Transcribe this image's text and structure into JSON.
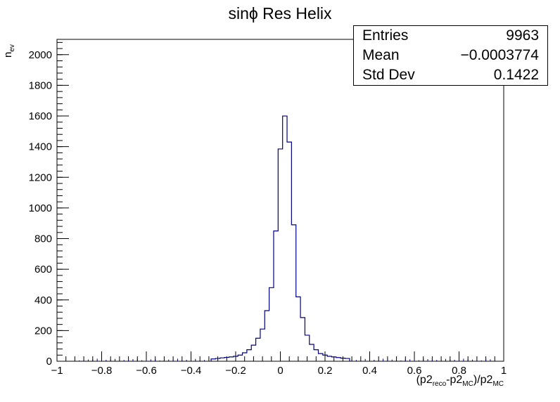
{
  "title": "sinϕ Res Helix",
  "stats": [
    {
      "label": "Entries",
      "value": "9963"
    },
    {
      "label": "Mean",
      "value": "−0.0003774"
    },
    {
      "label": "Std Dev",
      "value": "0.1422"
    }
  ],
  "axis_labels": {
    "y_main": "n",
    "y_sub": "ev",
    "x_p1": "(p2",
    "x_sub1": "reco",
    "x_p2": "-p2",
    "x_sub2": "MC",
    "x_p3": ")/p2",
    "x_sub3": "MC"
  },
  "colors": {
    "histogram": "#000080",
    "axes": "#000000",
    "background": "#ffffff"
  },
  "chart_data": {
    "type": "histogram",
    "title": "sinϕ Res Helix",
    "xlabel": "(p2_reco-p2_MC)/p2_MC",
    "ylabel": "n_ev",
    "xlim": [
      -1,
      1
    ],
    "ylim": [
      0,
      2100
    ],
    "x_ticks": [
      -1,
      -0.8,
      -0.6,
      -0.4,
      -0.2,
      0,
      0.2,
      0.4,
      0.6,
      0.8,
      1
    ],
    "x_tick_labels": [
      "−1",
      "−0.8",
      "−0.6",
      "−0.4",
      "−0.2",
      "0",
      "0.2",
      "0.4",
      "0.6",
      "0.8",
      "1"
    ],
    "y_ticks": [
      0,
      200,
      400,
      600,
      800,
      1000,
      1200,
      1400,
      1600,
      1800,
      2000
    ],
    "y_tick_labels": [
      "0",
      "200",
      "400",
      "600",
      "800",
      "1000",
      "1200",
      "1400",
      "1600",
      "1800",
      "2000"
    ],
    "bin_width": 0.02,
    "series": [
      {
        "bins": [
          {
            "x": -0.3,
            "y": 15
          },
          {
            "x": -0.28,
            "y": 18
          },
          {
            "x": -0.26,
            "y": 22
          },
          {
            "x": -0.24,
            "y": 25
          },
          {
            "x": -0.22,
            "y": 28
          },
          {
            "x": -0.2,
            "y": 32
          },
          {
            "x": -0.18,
            "y": 40
          },
          {
            "x": -0.16,
            "y": 55
          },
          {
            "x": -0.14,
            "y": 75
          },
          {
            "x": -0.12,
            "y": 105
          },
          {
            "x": -0.1,
            "y": 150
          },
          {
            "x": -0.08,
            "y": 210
          },
          {
            "x": -0.06,
            "y": 330
          },
          {
            "x": -0.04,
            "y": 480
          },
          {
            "x": -0.02,
            "y": 850
          },
          {
            "x": 0.0,
            "y": 1385
          },
          {
            "x": 0.02,
            "y": 1600
          },
          {
            "x": 0.04,
            "y": 1430
          },
          {
            "x": 0.06,
            "y": 890
          },
          {
            "x": 0.08,
            "y": 420
          },
          {
            "x": 0.1,
            "y": 285
          },
          {
            "x": 0.12,
            "y": 170
          },
          {
            "x": 0.14,
            "y": 110
          },
          {
            "x": 0.16,
            "y": 75
          },
          {
            "x": 0.18,
            "y": 50
          },
          {
            "x": 0.2,
            "y": 40
          },
          {
            "x": 0.22,
            "y": 32
          },
          {
            "x": 0.24,
            "y": 28
          },
          {
            "x": 0.26,
            "y": 24
          },
          {
            "x": 0.28,
            "y": 20
          },
          {
            "x": 0.3,
            "y": 18
          }
        ]
      }
    ]
  }
}
